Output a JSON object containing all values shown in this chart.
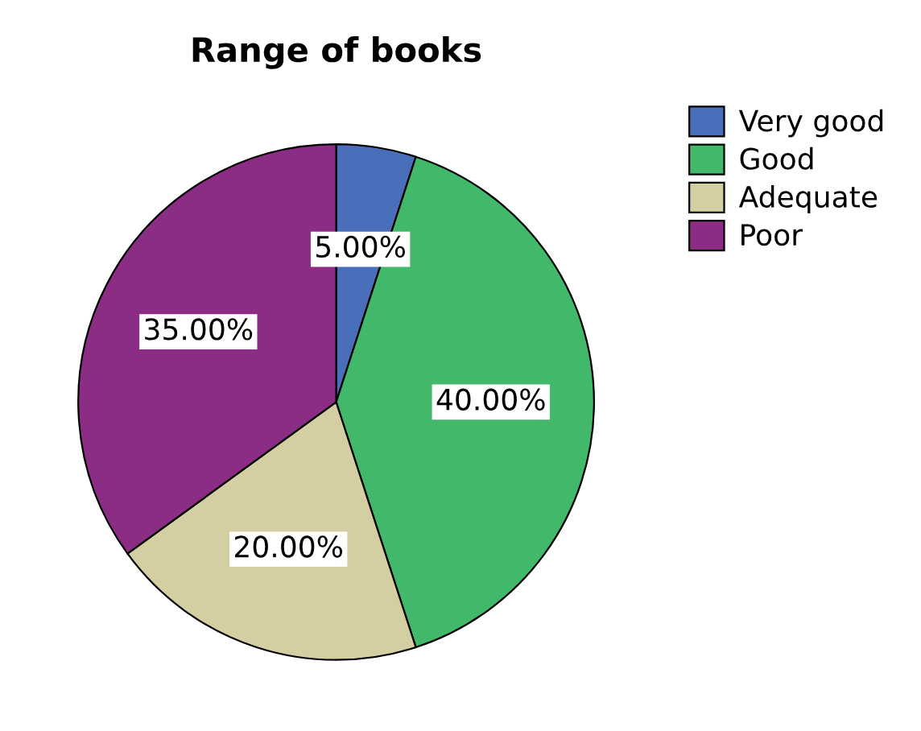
{
  "chart_data": {
    "type": "pie",
    "title": "Range of books",
    "categories": [
      "Very good",
      "Good",
      "Adequate",
      "Poor"
    ],
    "values": [
      5,
      40,
      20,
      35
    ],
    "value_labels": [
      "5.00%",
      "40.00%",
      "20.00%",
      "35.00%"
    ],
    "colors": [
      "#4a6fba",
      "#42b86a",
      "#d4cfa2",
      "#8b2c85"
    ],
    "legend": "top right"
  }
}
